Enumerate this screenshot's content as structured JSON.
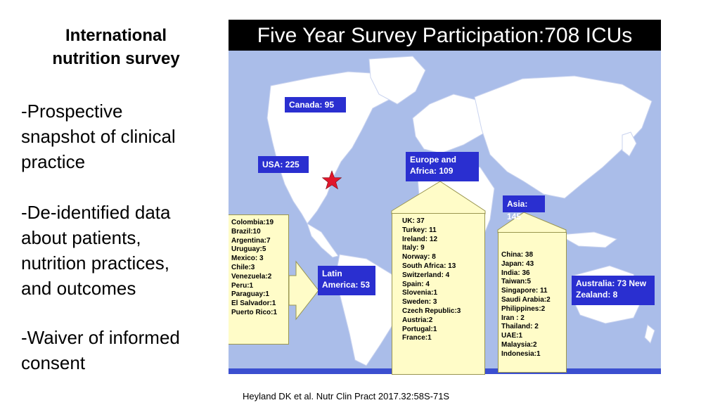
{
  "sidebar": {
    "title_line1": "International",
    "title_line2": "nutrition survey",
    "bullets": [
      {
        "lines": [
          "-Prospective",
          "snapshot of clinical",
          "practice"
        ]
      },
      {
        "lines": [
          "-De-identified data",
          "about patients,",
          "nutrition practices,",
          "and outcomes"
        ]
      },
      {
        "lines": [
          "-Waiver of informed",
          "consent"
        ]
      }
    ]
  },
  "header": {
    "title": "Five Year Survey Participation:708 ICUs"
  },
  "map": {
    "regions": {
      "canada": "Canada: 95",
      "usa": "USA: 225",
      "europe_line1": "Europe and",
      "europe_line2": "Africa: 109",
      "asia": "Asia: 145",
      "latin_line1": "Latin",
      "latin_line2": "America: 53",
      "australia_line1": "Australia: 73 New",
      "australia_line2": "Zealand: 8"
    },
    "latin_america_list": [
      "Colombia:19",
      "Brazil:10",
      "Argentina:7",
      "Uruguay:5",
      "Mexico: 3",
      "Chile:3",
      "Venezuela:2",
      "Peru:1",
      "Paraguay:1",
      "El Salvador:1",
      "Puerto Rico:1"
    ],
    "europe_africa_list": [
      "UK: 37",
      "Turkey: 11",
      "Ireland: 12",
      "Italy: 9",
      "Norway: 8",
      "South Africa: 13",
      "Switzerland: 4",
      "Spain: 4",
      "Slovenia:1",
      "Sweden: 3",
      "Czech Republic:3",
      "Austria:2",
      "Portugal:1",
      "France:1"
    ],
    "asia_list": [
      "China: 38",
      "Japan: 43",
      "India: 36",
      "Taiwan:5",
      "Singapore: 11",
      "Saudi Arabia:2",
      "Philippines:2",
      "Iran : 2",
      "Thailand: 2",
      "UAE:1",
      "Malaysia:2",
      "Indonesia:1"
    ],
    "colors": {
      "ocean": "#aabde9",
      "land": "#ffffff",
      "label": "#2a2fd0",
      "callout": "#fffcc8",
      "star": "#e0162b"
    }
  },
  "citation": "Heyland DK et al. Nutr Clin Pract 2017.32:58S-71S"
}
